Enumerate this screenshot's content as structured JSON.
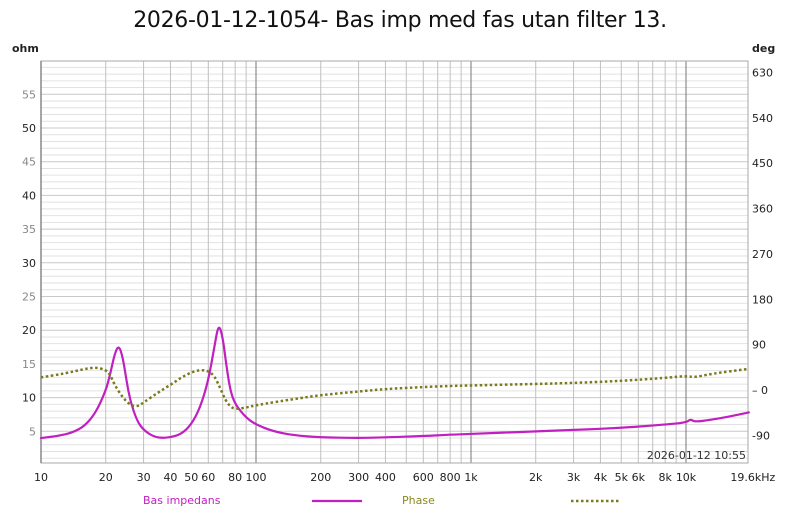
{
  "chart_data": {
    "type": "line",
    "title": "2026-01-12-1054- Bas imp med fas utan filter 13.",
    "xlabel": "Hz",
    "ylabel_left": "ohm",
    "ylabel_right": "deg",
    "x_scale": "log",
    "xlim": [
      10,
      19600
    ],
    "ylim_left": [
      0,
      60
    ],
    "ylim_right": [
      -135,
      650
    ],
    "x_tick_labels": [
      "10",
      "20",
      "30",
      "40",
      "50",
      "60",
      "80",
      "100",
      "200",
      "300",
      "400",
      "600",
      "800",
      "1k",
      "2k",
      "3k",
      "4k",
      "5k",
      "6k",
      "8k",
      "10k",
      "19.6kHz"
    ],
    "x_tick_values": [
      10,
      20,
      30,
      40,
      50,
      60,
      80,
      100,
      200,
      300,
      400,
      600,
      800,
      1000,
      2000,
      3000,
      4000,
      5000,
      6000,
      8000,
      10000,
      19600
    ],
    "y_left_ticks": [
      5,
      10,
      15,
      20,
      25,
      30,
      35,
      40,
      45,
      50,
      55
    ],
    "y_right_ticks": [
      -90,
      0,
      90,
      180,
      270,
      360,
      450,
      540,
      630
    ],
    "grid": true,
    "legend_position": "bottom",
    "timestamp": "2026-01-12 10:55",
    "series": [
      {
        "name": "Bas impedans",
        "axis": "left",
        "color": "#c020c0",
        "style": "solid",
        "points": [
          [
            10,
            4.0
          ],
          [
            12,
            4.3
          ],
          [
            14,
            4.8
          ],
          [
            16,
            5.8
          ],
          [
            18,
            7.8
          ],
          [
            20,
            11.0
          ],
          [
            21,
            13.5
          ],
          [
            22,
            16.5
          ],
          [
            23,
            17.8
          ],
          [
            24,
            16.0
          ],
          [
            25,
            12.5
          ],
          [
            26,
            9.5
          ],
          [
            28,
            6.5
          ],
          [
            30,
            5.2
          ],
          [
            33,
            4.3
          ],
          [
            36,
            4.0
          ],
          [
            40,
            4.1
          ],
          [
            45,
            4.6
          ],
          [
            50,
            6.0
          ],
          [
            55,
            8.5
          ],
          [
            60,
            12.5
          ],
          [
            64,
            17.5
          ],
          [
            67,
            21.0
          ],
          [
            70,
            19.0
          ],
          [
            73,
            14.5
          ],
          [
            76,
            11.0
          ],
          [
            80,
            9.0
          ],
          [
            90,
            7.0
          ],
          [
            100,
            6.0
          ],
          [
            120,
            5.0
          ],
          [
            150,
            4.4
          ],
          [
            200,
            4.1
          ],
          [
            300,
            4.0
          ],
          [
            400,
            4.1
          ],
          [
            600,
            4.3
          ],
          [
            800,
            4.5
          ],
          [
            1000,
            4.6
          ],
          [
            2000,
            5.0
          ],
          [
            3000,
            5.2
          ],
          [
            5000,
            5.5
          ],
          [
            8000,
            6.0
          ],
          [
            10000,
            6.3
          ],
          [
            10500,
            6.8
          ],
          [
            11000,
            6.4
          ],
          [
            13000,
            6.7
          ],
          [
            16000,
            7.2
          ],
          [
            19600,
            7.8
          ]
        ]
      },
      {
        "name": "Phase",
        "axis": "right",
        "color": "#7a7a20",
        "style": "dotted",
        "points": [
          [
            10,
            25
          ],
          [
            13,
            33
          ],
          [
            16,
            42
          ],
          [
            18,
            45
          ],
          [
            20,
            40
          ],
          [
            21,
            30
          ],
          [
            22,
            10
          ],
          [
            24,
            -15
          ],
          [
            26,
            -30
          ],
          [
            28,
            -33
          ],
          [
            30,
            -25
          ],
          [
            35,
            -5
          ],
          [
            40,
            10
          ],
          [
            45,
            25
          ],
          [
            50,
            35
          ],
          [
            55,
            40
          ],
          [
            60,
            38
          ],
          [
            64,
            28
          ],
          [
            68,
            5
          ],
          [
            72,
            -20
          ],
          [
            76,
            -33
          ],
          [
            80,
            -38
          ],
          [
            90,
            -35
          ],
          [
            100,
            -30
          ],
          [
            150,
            -18
          ],
          [
            200,
            -10
          ],
          [
            300,
            -3
          ],
          [
            400,
            2
          ],
          [
            600,
            6
          ],
          [
            800,
            8
          ],
          [
            1000,
            9
          ],
          [
            2000,
            12
          ],
          [
            3000,
            14
          ],
          [
            5000,
            18
          ],
          [
            8000,
            24
          ],
          [
            10000,
            28
          ],
          [
            11000,
            25
          ],
          [
            13000,
            32
          ],
          [
            19600,
            42
          ]
        ]
      }
    ]
  },
  "legend": [
    {
      "label": "Bas impedans",
      "color": "#c020c0"
    },
    {
      "label": "Phase",
      "color": "#8a8a20"
    }
  ]
}
